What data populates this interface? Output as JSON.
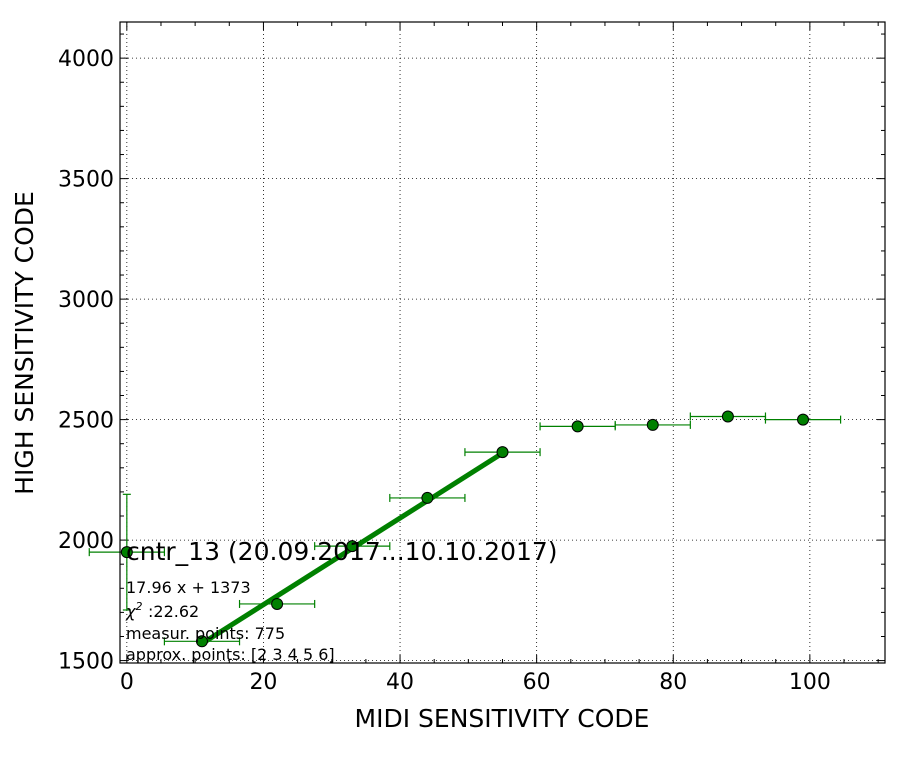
{
  "chart_data": {
    "type": "scatter",
    "xlabel": "MIDI SENSITIVITY CODE",
    "ylabel": "HIGH SENSITIVITY CODE",
    "xlim": [
      -1,
      111
    ],
    "ylim": [
      1490,
      4150
    ],
    "xticks": [
      0,
      20,
      40,
      60,
      80,
      100
    ],
    "yticks": [
      1500,
      2000,
      2500,
      3000,
      3500,
      4000
    ],
    "grid": true,
    "colors": {
      "series": "#008000",
      "marker_edge": "#000000"
    },
    "series": [
      {
        "points": [
          {
            "x": 0,
            "y": 1950,
            "xerr": 5.5,
            "yerr": 240
          },
          {
            "x": 11,
            "y": 1580,
            "xerr": 5.5,
            "yerr": 0
          },
          {
            "x": 22,
            "y": 1735,
            "xerr": 5.5,
            "yerr": 0
          },
          {
            "x": 33,
            "y": 1975,
            "xerr": 5.5,
            "yerr": 0
          },
          {
            "x": 44,
            "y": 2175,
            "xerr": 5.5,
            "yerr": 0
          },
          {
            "x": 55,
            "y": 2365,
            "xerr": 5.5,
            "yerr": 0
          },
          {
            "x": 66,
            "y": 2472,
            "xerr": 5.5,
            "yerr": 0
          },
          {
            "x": 77,
            "y": 2478,
            "xerr": 5.5,
            "yerr": 0
          },
          {
            "x": 88,
            "y": 2513,
            "xerr": 5.5,
            "yerr": 0
          },
          {
            "x": 99,
            "y": 2500,
            "xerr": 5.5,
            "yerr": 0
          }
        ]
      }
    ],
    "fit": {
      "slope": 17.96,
      "intercept": 1373,
      "x_range": [
        11,
        55
      ]
    },
    "annotations": {
      "title": "cntr_13 (20.09.2017...10.10.2017)",
      "equation": "17.96 x + 1373",
      "chi2": ":22.62",
      "measur_points": "measur. points: 775",
      "approx_points": "approx. points: [2 3 4 5 6]"
    }
  }
}
